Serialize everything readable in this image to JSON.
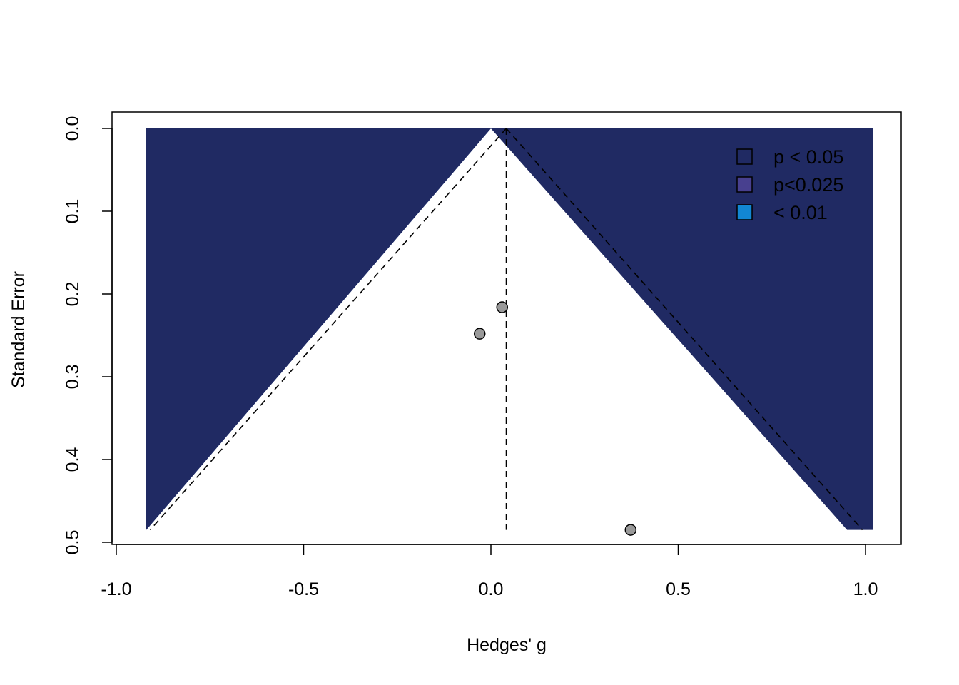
{
  "chart_data": {
    "type": "scatter",
    "subtype": "contour-enhanced funnel plot",
    "xlabel": "Hedges' g",
    "ylabel": "Standard Error",
    "xlim": [
      -0.92,
      1.02
    ],
    "ylim": [
      0.485,
      0.0
    ],
    "y_reversed": true,
    "x_ticks": [
      -1.0,
      -0.5,
      0.0,
      0.5,
      1.0
    ],
    "x_tick_labels": [
      "-1.0",
      "-0.5",
      "0.0",
      "0.5",
      "1.0"
    ],
    "y_ticks": [
      0.0,
      0.1,
      0.2,
      0.3,
      0.4,
      0.5
    ],
    "y_tick_labels": [
      "0.0",
      "0.1",
      "0.2",
      "0.3",
      "0.4",
      "0.5"
    ],
    "points": [
      {
        "x": 0.03,
        "y": 0.216
      },
      {
        "x": -0.03,
        "y": 0.248
      },
      {
        "x": 0.373,
        "y": 0.485
      }
    ],
    "summary_estimate": 0.041,
    "contours": [
      {
        "label": "< 0.01",
        "color": "#1287d3",
        "z": 2.576
      },
      {
        "label": "p<0.025",
        "color": "#48408f",
        "z": 2.24
      },
      {
        "label": "p < 0.05",
        "color": "#202a63",
        "z": 1.96
      }
    ],
    "legend": {
      "placement": "top-right",
      "entries": [
        {
          "label": "p < 0.05",
          "color": "#202a63"
        },
        {
          "label": "p<0.025",
          "color": "#48408f"
        },
        {
          "label": "< 0.01",
          "color": "#1287d3"
        }
      ]
    },
    "grid": false
  }
}
